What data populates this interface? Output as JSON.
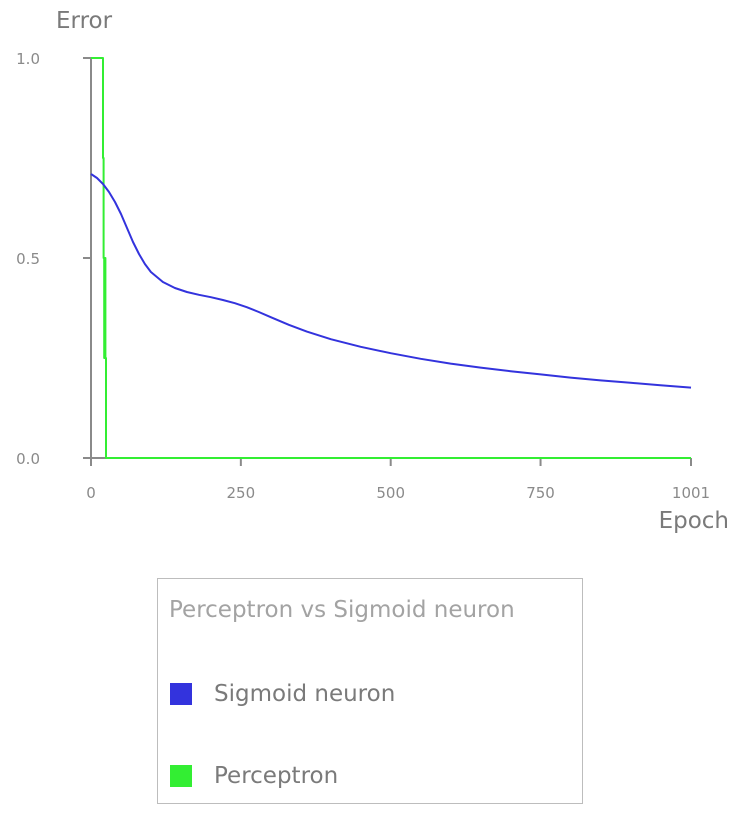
{
  "chart_data": {
    "type": "line",
    "ylabel": "Error",
    "xlabel": "Epoch",
    "xlim": [
      0,
      1001
    ],
    "ylim": [
      0,
      1
    ],
    "x_ticks": [
      "0",
      "250",
      "500",
      "750",
      "1001"
    ],
    "x_tick_values": [
      0,
      250,
      500,
      750,
      1001
    ],
    "y_ticks": [
      "0.0",
      "0.5",
      "1.0"
    ],
    "y_tick_values": [
      0,
      0.5,
      1.0
    ],
    "grid": false,
    "legend_position": "bottom-center",
    "legend": {
      "title": "Perceptron vs Sigmoid neuron",
      "entries": [
        "Sigmoid neuron",
        "Perceptron"
      ]
    },
    "series": [
      {
        "name": "Sigmoid neuron",
        "color": "#3333dd",
        "x": [
          0,
          10,
          20,
          30,
          40,
          50,
          60,
          70,
          80,
          90,
          100,
          120,
          140,
          160,
          180,
          200,
          220,
          240,
          260,
          280,
          300,
          330,
          360,
          400,
          450,
          500,
          550,
          600,
          650,
          700,
          750,
          800,
          850,
          900,
          950,
          1001
        ],
        "y": [
          0.71,
          0.7,
          0.685,
          0.665,
          0.64,
          0.61,
          0.575,
          0.54,
          0.51,
          0.485,
          0.465,
          0.44,
          0.425,
          0.415,
          0.408,
          0.402,
          0.395,
          0.387,
          0.377,
          0.365,
          0.352,
          0.333,
          0.316,
          0.297,
          0.278,
          0.262,
          0.248,
          0.236,
          0.226,
          0.217,
          0.209,
          0.201,
          0.194,
          0.188,
          0.182,
          0.176
        ]
      },
      {
        "name": "Perceptron",
        "color": "#33ee33",
        "x": [
          0,
          20,
          20,
          21,
          21,
          22,
          22,
          23,
          23,
          24,
          24,
          25,
          25,
          26,
          26,
          1001
        ],
        "y": [
          1.0,
          1.0,
          0.75,
          0.75,
          0.5,
          0.5,
          0.25,
          0.25,
          0.5,
          0.5,
          0.25,
          0.25,
          0.0,
          0.0,
          0.0,
          0.0
        ]
      }
    ]
  }
}
